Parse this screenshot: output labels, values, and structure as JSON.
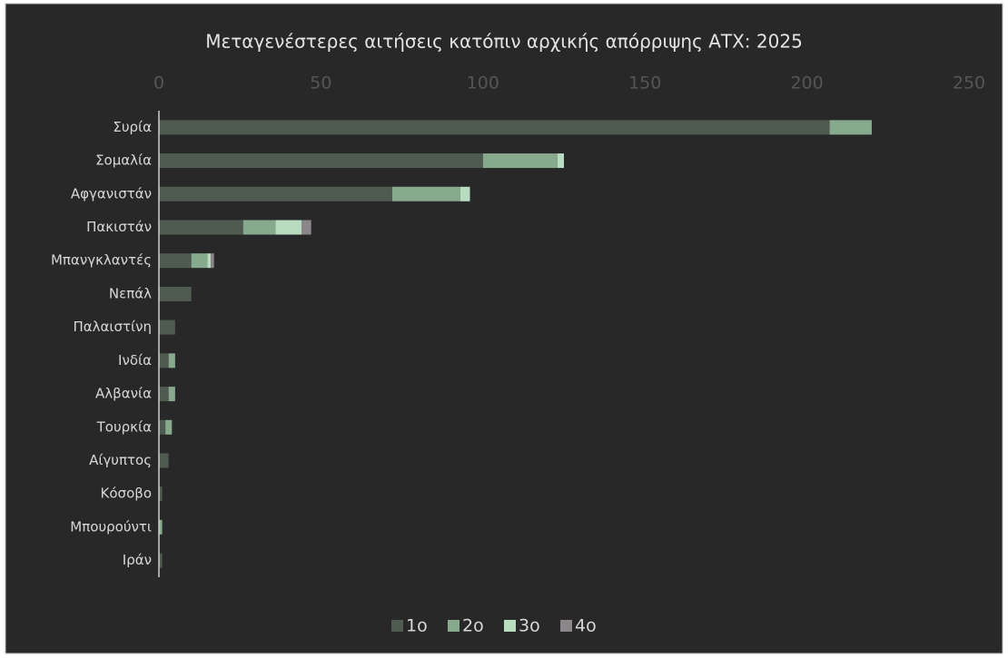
{
  "chart_data": {
    "type": "stacked-barh",
    "title": "Μεταγενέστερες αιτήσεις κατόπιν αρχικής απόρριψης ΑΤΧ: 2025",
    "categories": [
      "Συρία",
      "Σομαλία",
      "Αφγανιστάν",
      "Πακιστάν",
      "Μπανγκλαντές",
      "Νεπάλ",
      "Παλαιστίνη",
      "Ινδία",
      "Αλβανία",
      "Τουρκία",
      "Αίγυπτος",
      "Κόσοβο",
      "Μπουρούντι",
      "Ιράν"
    ],
    "series": [
      {
        "name": "1ο",
        "color": "#4f5b50",
        "values": [
          207,
          100,
          72,
          26,
          10,
          10,
          5,
          3,
          3,
          2,
          3,
          1,
          null,
          1
        ]
      },
      {
        "name": "2ο",
        "color": "#87a98e",
        "values": [
          13,
          23,
          21,
          10,
          5,
          null,
          null,
          2,
          2,
          2,
          null,
          null,
          1,
          null
        ]
      },
      {
        "name": "3ο",
        "color": "#b7dcc0",
        "values": [
          null,
          2,
          3,
          8,
          1,
          null,
          null,
          null,
          null,
          null,
          null,
          null,
          null,
          null
        ]
      },
      {
        "name": "4ο",
        "color": "#8a8689",
        "values": [
          null,
          null,
          null,
          3,
          1,
          null,
          null,
          null,
          null,
          null,
          null,
          null,
          null,
          null
        ]
      }
    ],
    "xlim": [
      0,
      250
    ],
    "xticks": [
      0,
      50,
      100,
      150,
      200,
      250
    ],
    "legend": "bottom"
  }
}
